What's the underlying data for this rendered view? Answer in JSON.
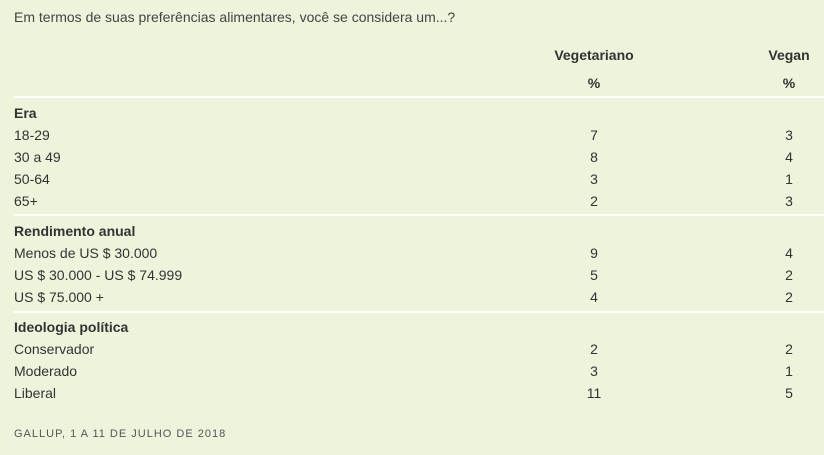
{
  "question": "Em termos de suas preferências alimentares, você se considera um...?",
  "chart_data": {
    "type": "table",
    "columns": [
      "Vegetariano",
      "Vegan"
    ],
    "unit_row": [
      "%",
      "%"
    ],
    "groups": [
      {
        "title": "Era",
        "rows": [
          {
            "label": "18-29",
            "values": [
              7,
              3
            ]
          },
          {
            "label": "30 a 49",
            "values": [
              8,
              4
            ]
          },
          {
            "label": "50-64",
            "values": [
              3,
              1
            ]
          },
          {
            "label": "65+",
            "values": [
              2,
              3
            ]
          }
        ]
      },
      {
        "title": "Rendimento anual",
        "rows": [
          {
            "label": "Menos de US $ 30.000",
            "values": [
              9,
              4
            ]
          },
          {
            "label": "US $ 30.000 - US $ 74.999",
            "values": [
              5,
              2
            ]
          },
          {
            "label": "US $ 75.000 +",
            "values": [
              4,
              2
            ]
          }
        ]
      },
      {
        "title": "Ideologia política",
        "rows": [
          {
            "label": "Conservador",
            "values": [
              2,
              2
            ]
          },
          {
            "label": "Moderado",
            "values": [
              3,
              1
            ]
          },
          {
            "label": "Liberal",
            "values": [
              11,
              5
            ]
          }
        ]
      }
    ]
  },
  "source": "GALLUP, 1 A 11 DE JULHO DE 2018",
  "colors": {
    "background": "#ecf4dc",
    "rule": "#ffffff",
    "text": "#333333"
  }
}
